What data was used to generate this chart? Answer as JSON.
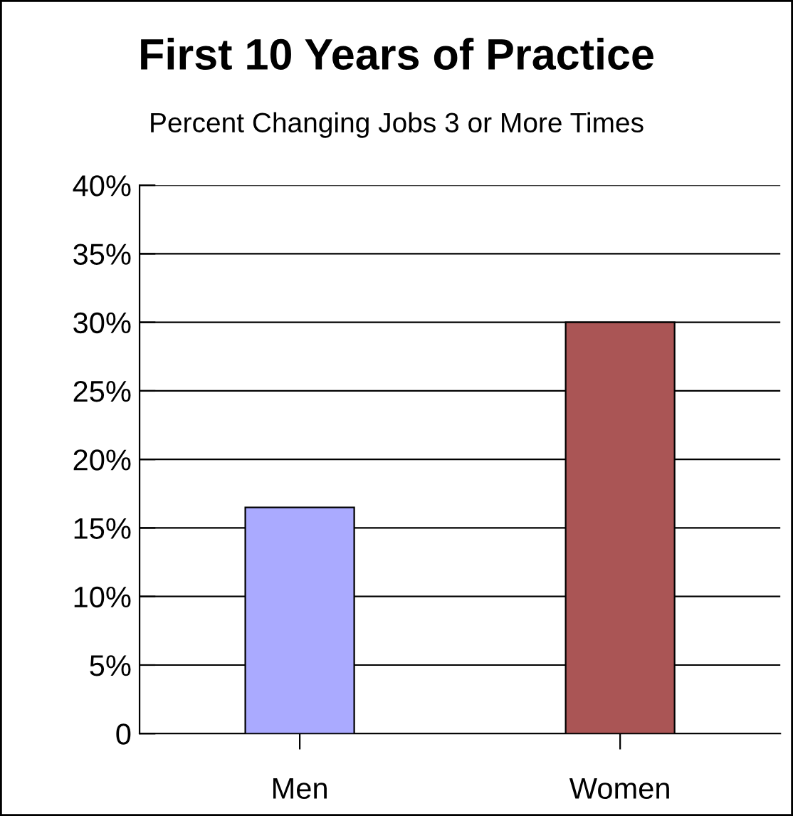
{
  "chart_data": {
    "type": "bar",
    "title": "First 10 Years of Practice",
    "subtitle": "Percent Changing Jobs 3 or More Times",
    "categories": [
      "Men",
      "Women"
    ],
    "values": [
      16.5,
      30
    ],
    "colors": [
      "#aaaaff",
      "#aa5555"
    ],
    "ylim": [
      0,
      40
    ],
    "yticks": [
      {
        "value": 0,
        "label": "0"
      },
      {
        "value": 5,
        "label": "5%"
      },
      {
        "value": 10,
        "label": "10%"
      },
      {
        "value": 15,
        "label": "15%"
      },
      {
        "value": 20,
        "label": "20%"
      },
      {
        "value": 25,
        "label": "25%"
      },
      {
        "value": 30,
        "label": "30%"
      },
      {
        "value": 35,
        "label": "35%"
      },
      {
        "value": 40,
        "label": "40%"
      }
    ],
    "grid": "y"
  }
}
